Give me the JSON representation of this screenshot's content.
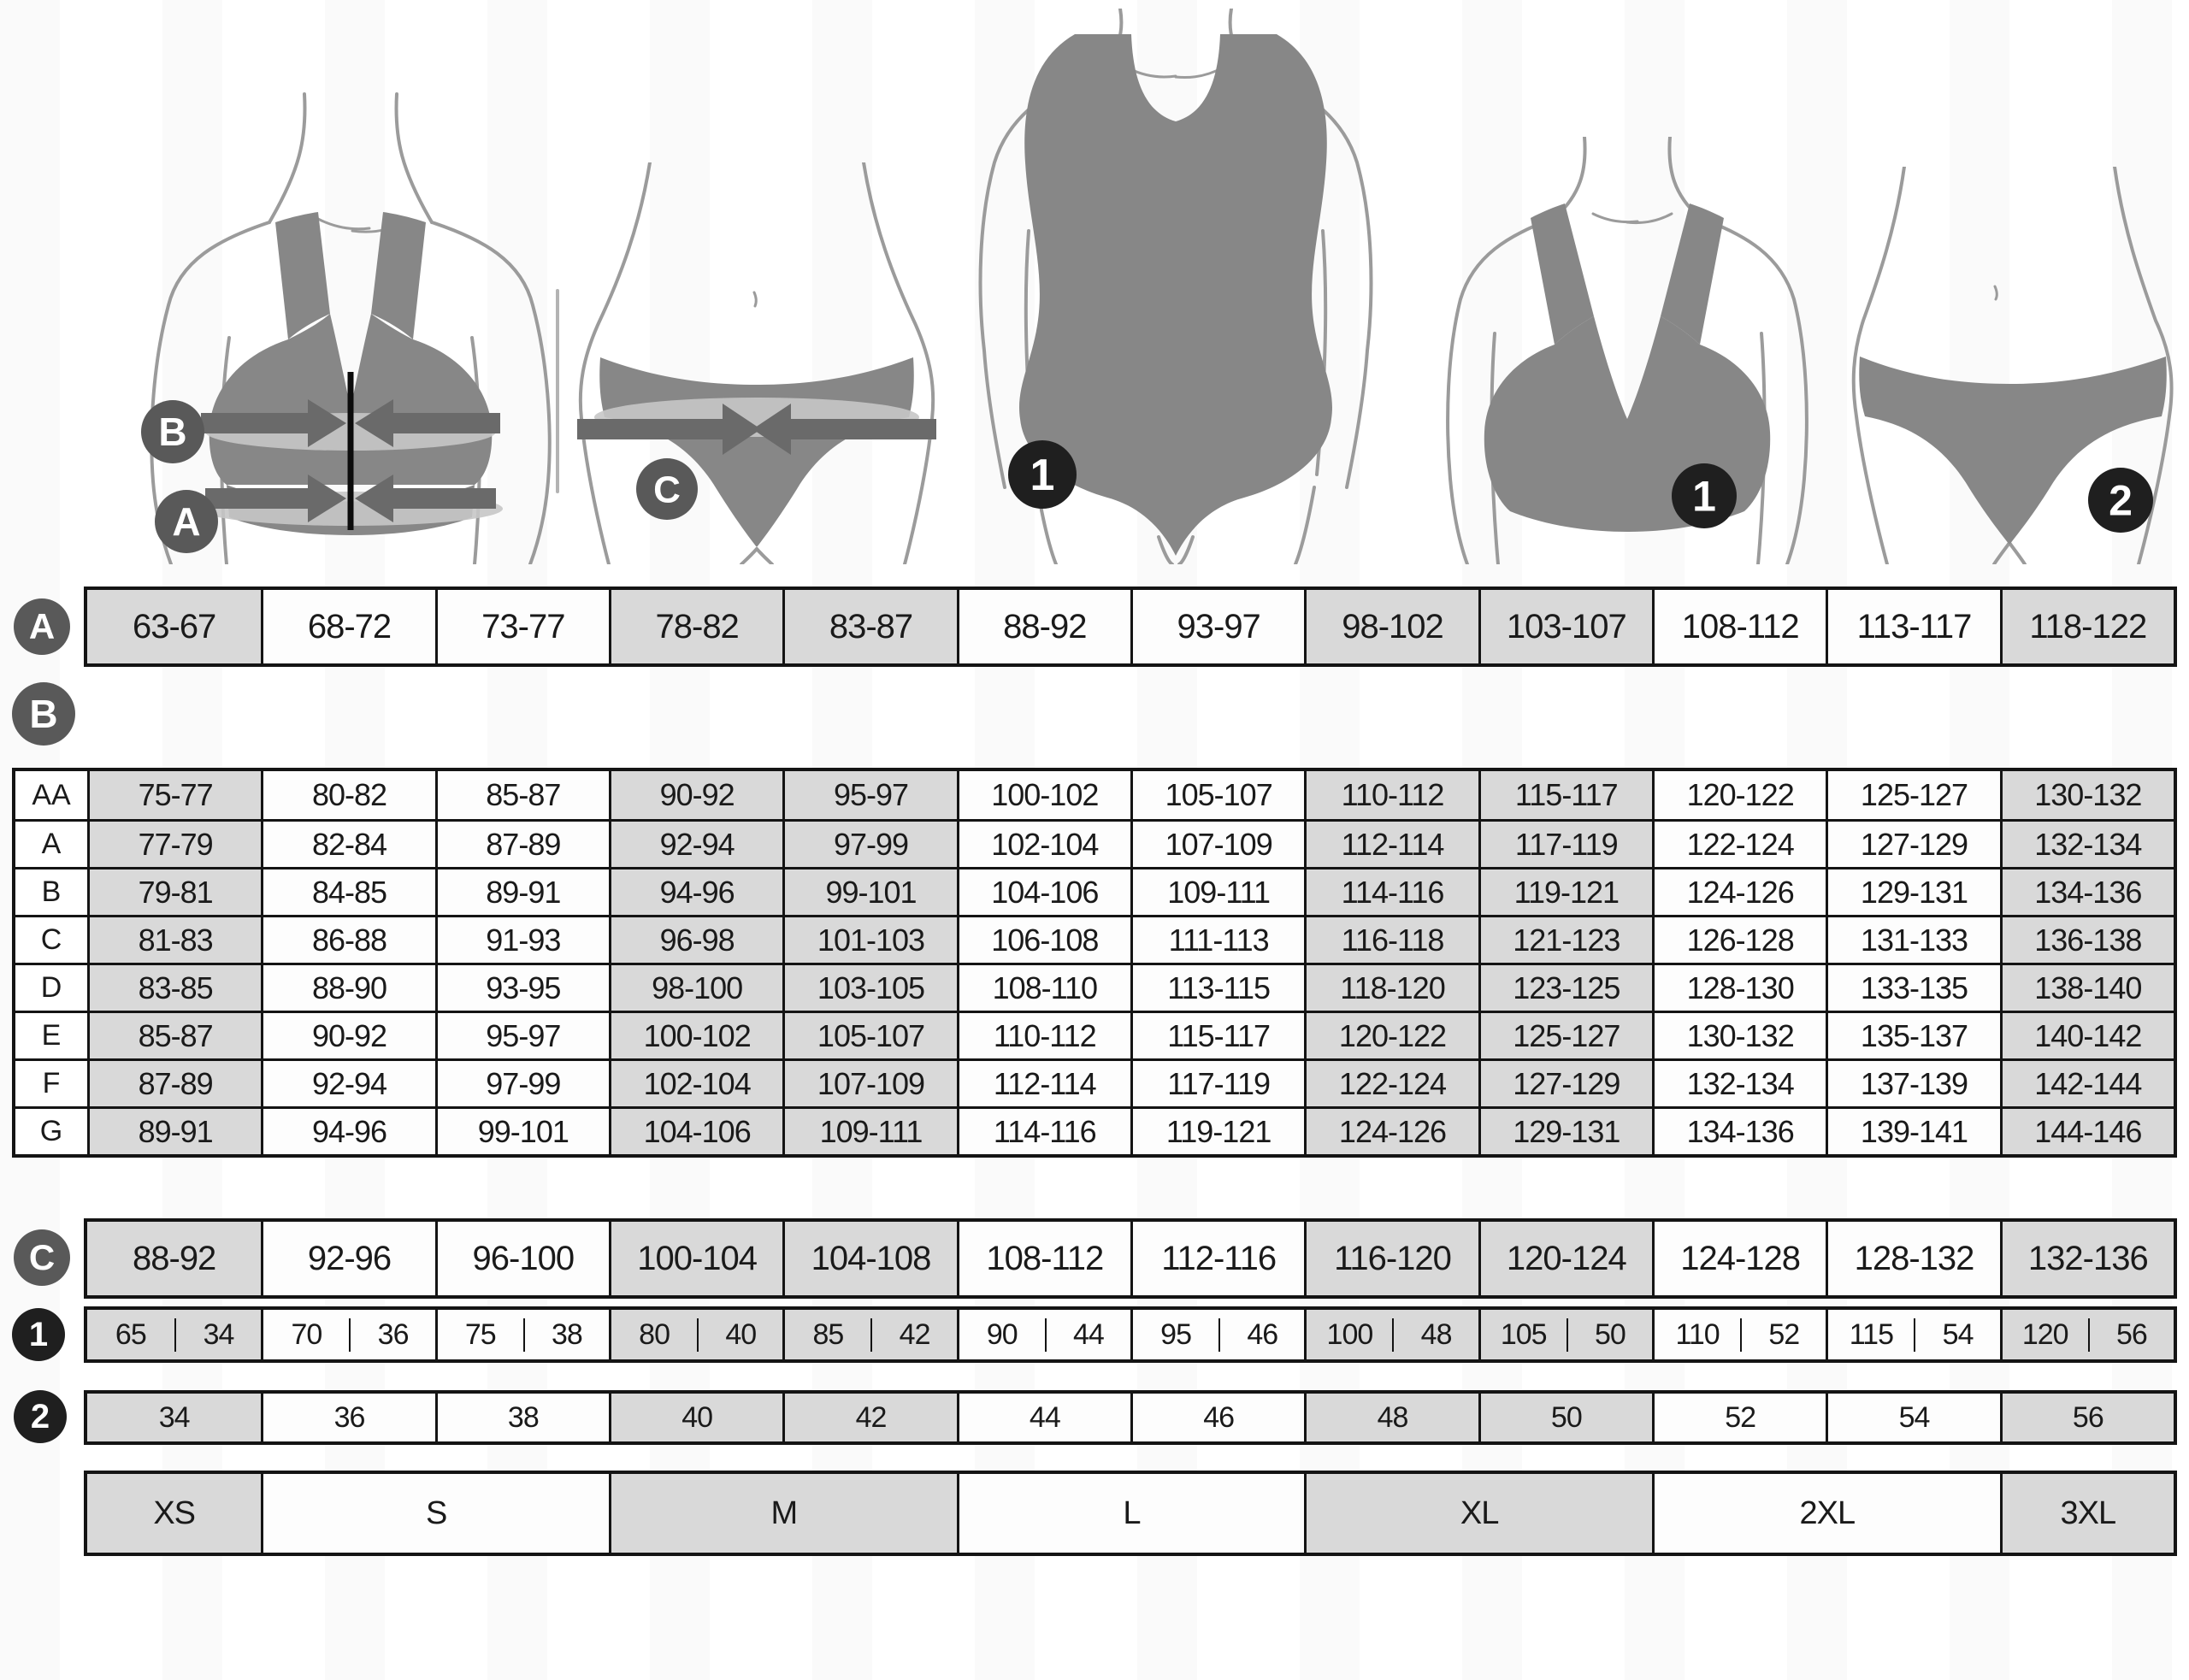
{
  "legend": {
    "underbust": "A",
    "bust": "B",
    "hip": "C",
    "bra_size": "1",
    "brief_size": "2"
  },
  "underbust_row": {
    "label": "A",
    "cells": [
      "63-67",
      "68-72",
      "73-77",
      "78-82",
      "83-87",
      "88-92",
      "93-97",
      "98-102",
      "103-107",
      "108-112",
      "113-117",
      "118-122"
    ]
  },
  "bust_table": {
    "label": "B",
    "rows": [
      {
        "cup": "AA",
        "cells": [
          "75-77",
          "80-82",
          "85-87",
          "90-92",
          "95-97",
          "100-102",
          "105-107",
          "110-112",
          "115-117",
          "120-122",
          "125-127",
          "130-132"
        ]
      },
      {
        "cup": "A",
        "cells": [
          "77-79",
          "82-84",
          "87-89",
          "92-94",
          "97-99",
          "102-104",
          "107-109",
          "112-114",
          "117-119",
          "122-124",
          "127-129",
          "132-134"
        ]
      },
      {
        "cup": "B",
        "cells": [
          "79-81",
          "84-85",
          "89-91",
          "94-96",
          "99-101",
          "104-106",
          "109-111",
          "114-116",
          "119-121",
          "124-126",
          "129-131",
          "134-136"
        ]
      },
      {
        "cup": "C",
        "cells": [
          "81-83",
          "86-88",
          "91-93",
          "96-98",
          "101-103",
          "106-108",
          "111-113",
          "116-118",
          "121-123",
          "126-128",
          "131-133",
          "136-138"
        ]
      },
      {
        "cup": "D",
        "cells": [
          "83-85",
          "88-90",
          "93-95",
          "98-100",
          "103-105",
          "108-110",
          "113-115",
          "118-120",
          "123-125",
          "128-130",
          "133-135",
          "138-140"
        ]
      },
      {
        "cup": "E",
        "cells": [
          "85-87",
          "90-92",
          "95-97",
          "100-102",
          "105-107",
          "110-112",
          "115-117",
          "120-122",
          "125-127",
          "130-132",
          "135-137",
          "140-142"
        ]
      },
      {
        "cup": "F",
        "cells": [
          "87-89",
          "92-94",
          "97-99",
          "102-104",
          "107-109",
          "112-114",
          "117-119",
          "122-124",
          "127-129",
          "132-134",
          "137-139",
          "142-144"
        ]
      },
      {
        "cup": "G",
        "cells": [
          "89-91",
          "94-96",
          "99-101",
          "104-106",
          "109-111",
          "114-116",
          "119-121",
          "124-126",
          "129-131",
          "134-136",
          "139-141",
          "144-146"
        ]
      }
    ]
  },
  "hip_row": {
    "label": "C",
    "cells": [
      "88-92",
      "92-96",
      "96-100",
      "100-104",
      "104-108",
      "108-112",
      "112-116",
      "116-120",
      "120-124",
      "124-128",
      "128-132",
      "132-136"
    ]
  },
  "bra_size_row": {
    "label": "1",
    "pairs": [
      [
        "65",
        "34"
      ],
      [
        "70",
        "36"
      ],
      [
        "75",
        "38"
      ],
      [
        "80",
        "40"
      ],
      [
        "85",
        "42"
      ],
      [
        "90",
        "44"
      ],
      [
        "95",
        "46"
      ],
      [
        "100",
        "48"
      ],
      [
        "105",
        "50"
      ],
      [
        "110",
        "52"
      ],
      [
        "115",
        "54"
      ],
      [
        "120",
        "56"
      ]
    ]
  },
  "brief_size_row": {
    "label": "2",
    "cells": [
      "34",
      "36",
      "38",
      "40",
      "42",
      "44",
      "46",
      "48",
      "50",
      "52",
      "54",
      "56"
    ]
  },
  "intl_size_row": {
    "cells": [
      {
        "label": "XS",
        "span": 1
      },
      {
        "label": "S",
        "span": 2
      },
      {
        "label": "M",
        "span": 2
      },
      {
        "label": "L",
        "span": 2
      },
      {
        "label": "XL",
        "span": 2
      },
      {
        "label": "2XL",
        "span": 2
      },
      {
        "label": "3XL",
        "span": 1
      }
    ]
  },
  "colors": {
    "shaded_cell": "#d9d9d9",
    "grid_line": "#141414",
    "label_badge": "#595959",
    "number_badge": "#1f1f1f",
    "garment": "#878787",
    "band_light": "#c7c7c7",
    "band_dark": "#6a6a6a",
    "body_outline": "#9b9b9b"
  }
}
